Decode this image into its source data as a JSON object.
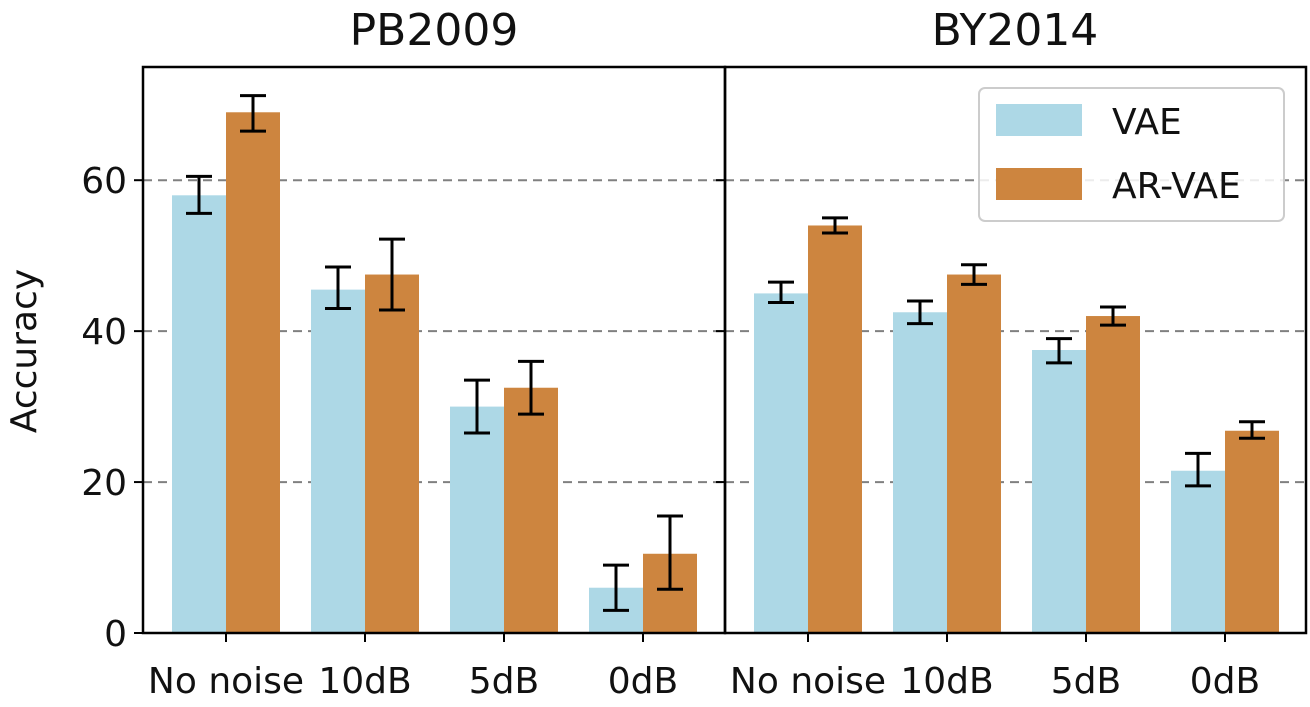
{
  "chart_data": {
    "type": "bar",
    "ylabel": "Accuracy",
    "ylim": [
      0,
      75
    ],
    "yticks": [
      0,
      20,
      40,
      60
    ],
    "grid": "horizontal dashed at 20, 40, 60",
    "legend_position": "top-right of second panel",
    "categories": [
      "No noise",
      "10dB",
      "5dB",
      "0dB"
    ],
    "series_colors": {
      "VAE": "#add8e6",
      "AR-VAE": "#cd853f"
    },
    "panels": [
      {
        "title": "PB2009",
        "series": [
          {
            "name": "VAE",
            "values": [
              58,
              45.5,
              30,
              6
            ],
            "err_low": [
              55.6,
              43,
              26.5,
              3
            ],
            "err_high": [
              60.5,
              48.5,
              33.5,
              9
            ]
          },
          {
            "name": "AR-VAE",
            "values": [
              69,
              47.5,
              32.5,
              10.5
            ],
            "err_low": [
              66.5,
              42.8,
              29,
              5.8
            ],
            "err_high": [
              71.2,
              52.2,
              36,
              15.5
            ]
          }
        ]
      },
      {
        "title": "BY2014",
        "series": [
          {
            "name": "VAE",
            "values": [
              45,
              42.5,
              37.5,
              21.5
            ],
            "err_low": [
              43.8,
              41,
              35.8,
              19.5
            ],
            "err_high": [
              46.5,
              44,
              39,
              23.8
            ]
          },
          {
            "name": "AR-VAE",
            "values": [
              54,
              47.5,
              42,
              26.8
            ],
            "err_low": [
              53,
              46.2,
              40.8,
              25.8
            ],
            "err_high": [
              55,
              48.8,
              43.2,
              28
            ]
          }
        ]
      }
    ]
  }
}
